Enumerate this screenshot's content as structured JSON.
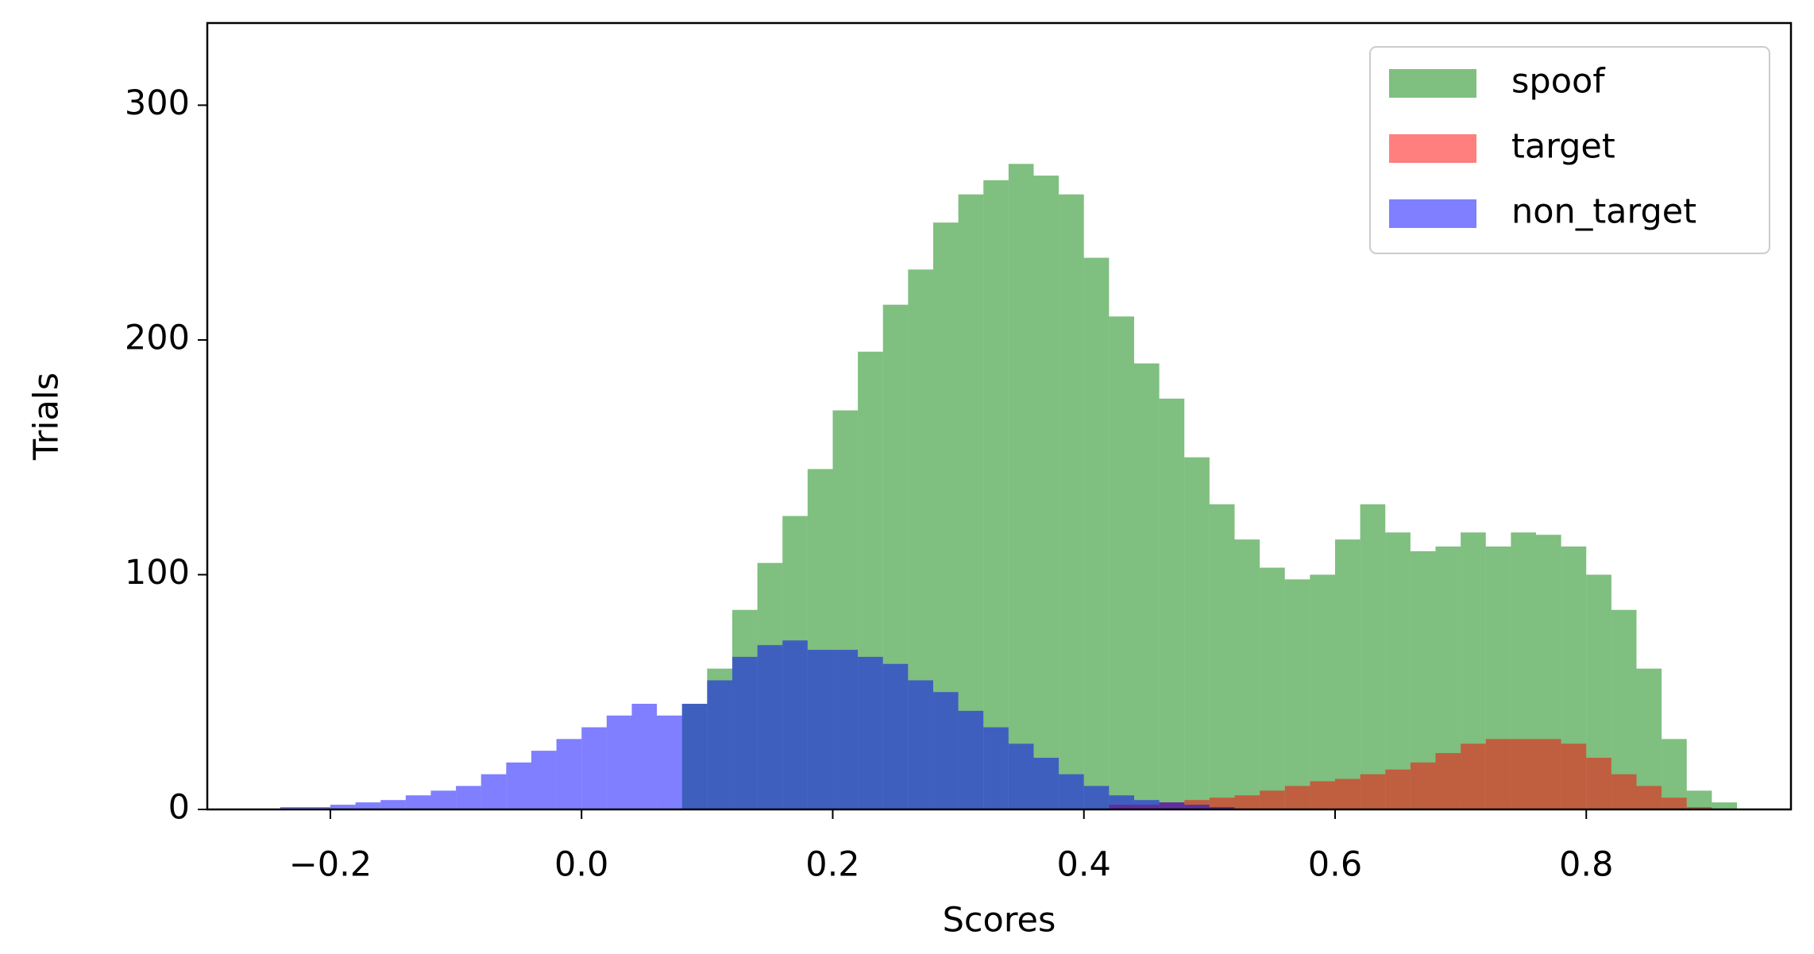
{
  "chart_data": {
    "type": "histogram",
    "xlabel": "Scores",
    "ylabel": "Trials",
    "bins": [
      -0.24,
      -0.22,
      -0.2,
      -0.18,
      -0.16,
      -0.14,
      -0.12,
      -0.1,
      -0.08,
      -0.06,
      -0.04,
      -0.02,
      0,
      0.02,
      0.04,
      0.06,
      0.08,
      0.1,
      0.12,
      0.14,
      0.16,
      0.18,
      0.2,
      0.22,
      0.24,
      0.26,
      0.28,
      0.3,
      0.32,
      0.34,
      0.36,
      0.38,
      0.4,
      0.42,
      0.44,
      0.46,
      0.48,
      0.5,
      0.52,
      0.54,
      0.56,
      0.58,
      0.6,
      0.62,
      0.64,
      0.66,
      0.68,
      0.7,
      0.72,
      0.74,
      0.76,
      0.78,
      0.8,
      0.82,
      0.84,
      0.86,
      0.88,
      0.9,
      0.92
    ],
    "alpha": 0.5,
    "series": [
      {
        "name": "spoof",
        "color": "#008000",
        "values": [
          0,
          0,
          0,
          0,
          0,
          0,
          0,
          0,
          0,
          0,
          0,
          0,
          0,
          0,
          0,
          0,
          45,
          60,
          85,
          105,
          125,
          145,
          170,
          195,
          215,
          230,
          250,
          262,
          268,
          275,
          270,
          262,
          235,
          210,
          190,
          175,
          150,
          130,
          115,
          103,
          98,
          100,
          115,
          130,
          118,
          110,
          112,
          118,
          112,
          118,
          117,
          112,
          100,
          85,
          60,
          30,
          8,
          3
        ]
      },
      {
        "name": "target",
        "color": "#ff0000",
        "values": [
          0,
          0,
          0,
          0,
          0,
          0,
          0,
          0,
          0,
          0,
          0,
          0,
          0,
          0,
          0,
          0,
          0,
          0,
          0,
          0,
          0,
          0,
          0,
          0,
          0,
          0,
          0,
          0,
          0,
          0,
          0,
          0,
          0,
          2,
          2,
          3,
          4,
          5,
          6,
          8,
          10,
          12,
          13,
          15,
          17,
          20,
          24,
          28,
          30,
          30,
          30,
          28,
          22,
          15,
          10,
          5,
          1,
          0
        ]
      },
      {
        "name": "non_target",
        "color": "#0000ff",
        "values": [
          1,
          1,
          2,
          3,
          4,
          6,
          8,
          10,
          15,
          20,
          25,
          30,
          35,
          40,
          45,
          40,
          45,
          55,
          65,
          70,
          72,
          68,
          68,
          65,
          62,
          55,
          50,
          42,
          35,
          28,
          22,
          15,
          10,
          6,
          4,
          3,
          2,
          1,
          0,
          0,
          0,
          0,
          0,
          0,
          0,
          0,
          0,
          0,
          0,
          0,
          0,
          0,
          0,
          0,
          0,
          0,
          0,
          0
        ]
      }
    ],
    "xlim": [
      -0.298,
      0.963
    ],
    "ylim": [
      0,
      335
    ],
    "xticks": [
      {
        "value": -0.2,
        "label": "−0.2"
      },
      {
        "value": 0,
        "label": "0.0"
      },
      0.2,
      0.4,
      0.6,
      0.8
    ],
    "yticks": [
      0,
      100,
      200,
      300
    ],
    "legend": "upper right"
  }
}
